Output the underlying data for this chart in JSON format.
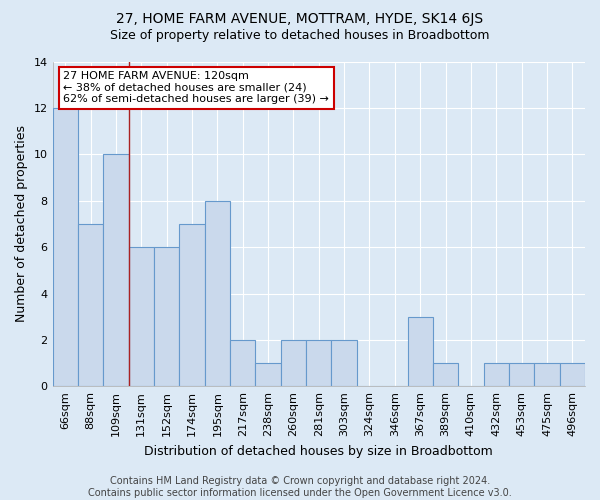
{
  "title": "27, HOME FARM AVENUE, MOTTRAM, HYDE, SK14 6JS",
  "subtitle": "Size of property relative to detached houses in Broadbottom",
  "xlabel": "Distribution of detached houses by size in Broadbottom",
  "ylabel": "Number of detached properties",
  "categories": [
    "66sqm",
    "88sqm",
    "109sqm",
    "131sqm",
    "152sqm",
    "174sqm",
    "195sqm",
    "217sqm",
    "238sqm",
    "260sqm",
    "281sqm",
    "303sqm",
    "324sqm",
    "346sqm",
    "367sqm",
    "389sqm",
    "410sqm",
    "432sqm",
    "453sqm",
    "475sqm",
    "496sqm"
  ],
  "values": [
    12,
    7,
    10,
    6,
    6,
    7,
    8,
    2,
    1,
    2,
    2,
    2,
    0,
    0,
    3,
    1,
    0,
    1,
    1,
    1,
    1
  ],
  "bar_color": "#cad9ec",
  "bar_edge_color": "#6699cc",
  "red_line_index": 2,
  "ylim": [
    0,
    14
  ],
  "yticks": [
    0,
    2,
    4,
    6,
    8,
    10,
    12,
    14
  ],
  "annotation_text": "27 HOME FARM AVENUE: 120sqm\n← 38% of detached houses are smaller (24)\n62% of semi-detached houses are larger (39) →",
  "annotation_box_color": "#ffffff",
  "annotation_box_edge_color": "#cc0000",
  "footer_line1": "Contains HM Land Registry data © Crown copyright and database right 2024.",
  "footer_line2": "Contains public sector information licensed under the Open Government Licence v3.0.",
  "background_color": "#dce9f5",
  "plot_bg_color": "#dce9f5",
  "grid_color": "#ffffff",
  "title_fontsize": 10,
  "subtitle_fontsize": 9,
  "axis_label_fontsize": 9,
  "tick_fontsize": 8,
  "annotation_fontsize": 8,
  "footer_fontsize": 7
}
